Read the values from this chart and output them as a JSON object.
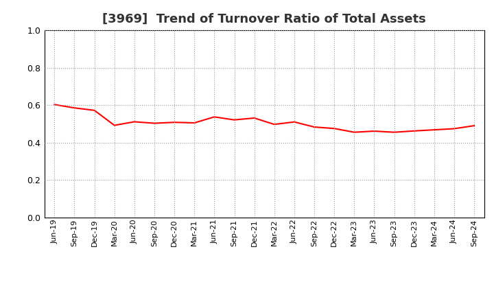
{
  "title": "[3969]  Trend of Turnover Ratio of Total Assets",
  "title_fontsize": 13,
  "title_fontweight": "bold",
  "line_color": "#ff0000",
  "line_width": 1.5,
  "background_color": "#ffffff",
  "ylim": [
    0.0,
    1.0
  ],
  "yticks": [
    0.0,
    0.2,
    0.4,
    0.6,
    0.8,
    1.0
  ],
  "grid_color": "#999999",
  "x_labels": [
    "Jun-19",
    "Sep-19",
    "Dec-19",
    "Mar-20",
    "Jun-20",
    "Sep-20",
    "Dec-20",
    "Mar-21",
    "Jun-21",
    "Sep-21",
    "Dec-21",
    "Mar-22",
    "Jun-22",
    "Sep-22",
    "Dec-22",
    "Mar-23",
    "Jun-23",
    "Sep-23",
    "Dec-23",
    "Mar-24",
    "Jun-24",
    "Sep-24"
  ],
  "values": [
    0.603,
    0.585,
    0.572,
    0.492,
    0.511,
    0.503,
    0.508,
    0.505,
    0.537,
    0.521,
    0.531,
    0.497,
    0.51,
    0.483,
    0.475,
    0.455,
    0.461,
    0.455,
    0.462,
    0.468,
    0.474,
    0.49
  ]
}
